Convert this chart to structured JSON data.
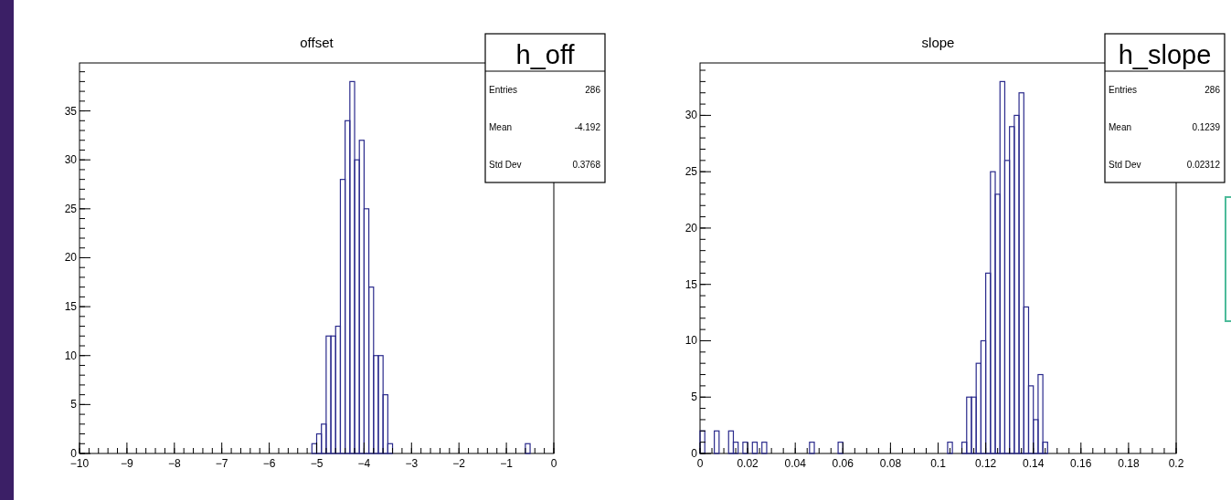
{
  "chart_data": [
    {
      "type": "histogram",
      "title": "offset",
      "bins": [
        -5.2,
        -5.1,
        -5.0,
        -4.9,
        -4.8,
        -4.7,
        -4.6,
        -4.5,
        -4.4,
        -4.3,
        -4.2,
        -4.1,
        -4.0,
        -3.9,
        -3.8,
        -3.7,
        -3.6,
        -3.5,
        -3.4,
        -3.3,
        -3.2,
        -3.1,
        -3.0,
        -2.9,
        -2.8,
        -2.7,
        -2.6,
        -2.5,
        -2.4,
        -2.3,
        -2.2,
        -2.1,
        -2.0,
        -1.9,
        -1.8,
        -1.7,
        -1.6,
        -1.5,
        -1.4,
        -1.3,
        -1.2,
        -1.1,
        -1.0,
        -0.9,
        -0.8,
        -0.7,
        -0.6,
        -0.5,
        -0.4
      ],
      "values": [
        0,
        1,
        2,
        3,
        12,
        12,
        13,
        28,
        34,
        38,
        30,
        32,
        25,
        17,
        10,
        10,
        6,
        1,
        0,
        0,
        0,
        0,
        0,
        0,
        0,
        0,
        0,
        0,
        0,
        0,
        0,
        0,
        0,
        0,
        0,
        0,
        0,
        0,
        0,
        0,
        0,
        0,
        0,
        0,
        0,
        0,
        1,
        0
      ],
      "color": "#2a2a8c",
      "xlim": [
        -10,
        0
      ],
      "xticks": [
        -10,
        -9,
        -8,
        -7,
        -6,
        -5,
        -4,
        -3,
        -2,
        -1,
        0
      ],
      "ylim": [
        0,
        39.9
      ],
      "yticks": [
        0,
        5,
        10,
        15,
        20,
        25,
        30,
        35
      ],
      "annotations": [
        "h_off",
        "Entries",
        "286",
        "Mean",
        "-4.192",
        "Std Dev",
        "0.3768"
      ]
    },
    {
      "type": "histogram",
      "title": "slope",
      "bins": [
        0,
        0.002,
        0.004,
        0.006,
        0.008,
        0.01,
        0.012,
        0.014,
        0.016,
        0.018,
        0.02,
        0.022,
        0.024,
        0.026,
        0.028,
        0.03,
        0.032,
        0.034,
        0.036,
        0.038,
        0.04,
        0.042,
        0.044,
        0.046,
        0.048,
        0.05,
        0.052,
        0.054,
        0.056,
        0.058,
        0.06,
        0.062,
        0.064,
        0.066,
        0.068,
        0.07,
        0.072,
        0.074,
        0.076,
        0.078,
        0.08,
        0.082,
        0.084,
        0.086,
        0.088,
        0.09,
        0.092,
        0.094,
        0.096,
        0.098,
        0.1,
        0.102,
        0.104,
        0.106,
        0.108,
        0.11,
        0.112,
        0.114,
        0.116,
        0.118,
        0.12,
        0.122,
        0.124,
        0.126,
        0.128,
        0.13,
        0.132,
        0.134,
        0.136,
        0.138,
        0.14,
        0.142,
        0.144,
        0.146
      ],
      "values": [
        2,
        0,
        0,
        2,
        0,
        0,
        2,
        1,
        0,
        1,
        0,
        1,
        0,
        1,
        0,
        0,
        0,
        0,
        0,
        0,
        0,
        0,
        0,
        1,
        0,
        0,
        0,
        0,
        0,
        1,
        0,
        0,
        0,
        0,
        0,
        0,
        0,
        0,
        0,
        0,
        0,
        0,
        0,
        0,
        0,
        0,
        0,
        0,
        0,
        0,
        0,
        0,
        1,
        0,
        0,
        1,
        5,
        5,
        8,
        10,
        16,
        25,
        23,
        33,
        26,
        29,
        30,
        32,
        13,
        6,
        3,
        7,
        1
      ],
      "color": "#2a2a8c",
      "xlim": [
        0,
        0.2
      ],
      "xticks": [
        0,
        0.02,
        0.04,
        0.06,
        0.08,
        0.1,
        0.12,
        0.14,
        0.16,
        0.18,
        0.2
      ],
      "ylim": [
        0,
        34.65
      ],
      "yticks": [
        0,
        5,
        10,
        15,
        20,
        25,
        30
      ],
      "annotations": [
        "h_slope",
        "Entries",
        "286",
        "Mean",
        "0.1239",
        "Std Dev",
        "0.02312"
      ]
    }
  ]
}
